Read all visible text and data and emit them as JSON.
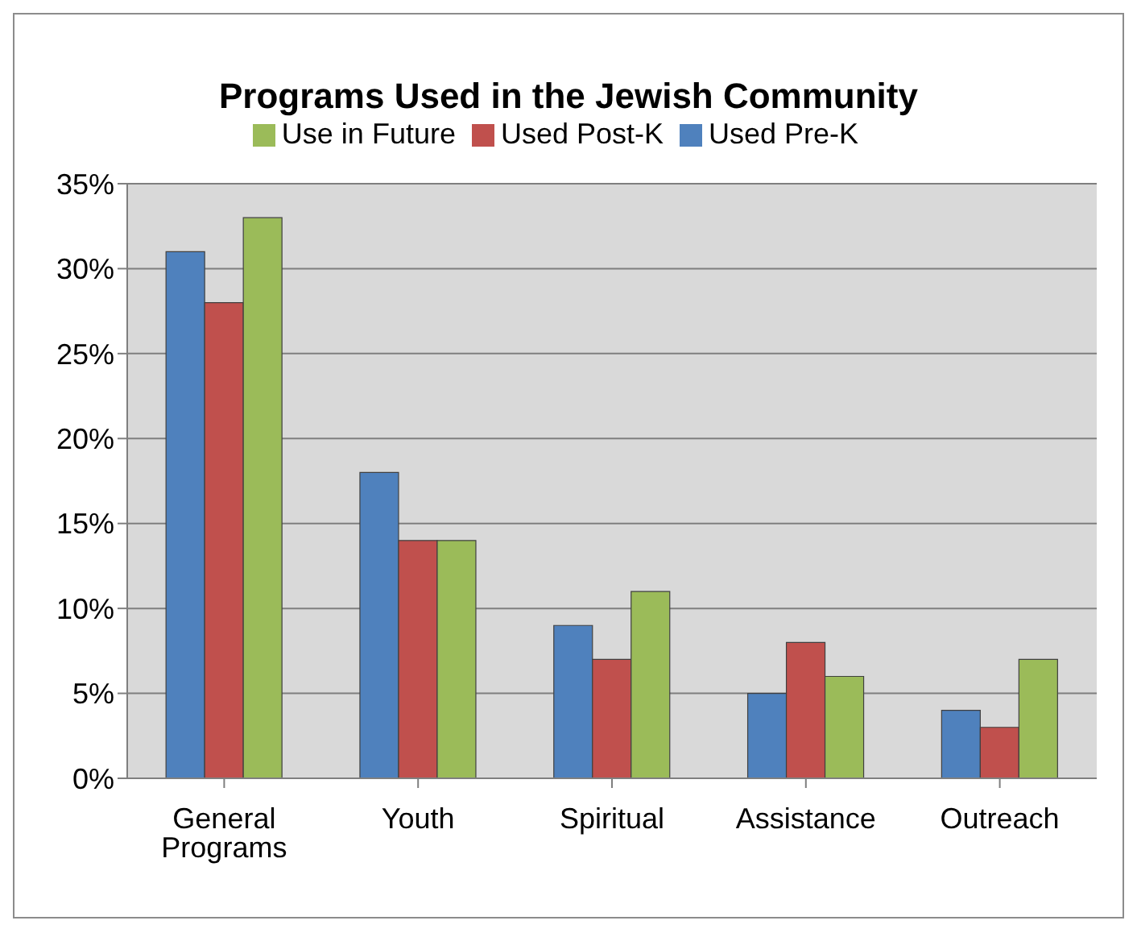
{
  "chart_data": {
    "type": "bar",
    "title": "Programs Used in the Jewish Community",
    "categories": [
      "General Programs",
      "Youth",
      "Spiritual",
      "Assistance",
      "Outreach"
    ],
    "series": [
      {
        "name": "Used Pre-K",
        "color": "#4f81bd",
        "values": [
          31,
          18,
          9,
          5,
          4
        ]
      },
      {
        "name": "Used Post-K",
        "color": "#c0504d",
        "values": [
          28,
          14,
          7,
          8,
          3
        ]
      },
      {
        "name": "Use in Future",
        "color": "#9bbb59",
        "values": [
          33,
          14,
          11,
          6,
          7
        ]
      }
    ],
    "ylim": [
      0,
      35
    ],
    "yticks": [
      {
        "value": 0,
        "label": "0%"
      },
      {
        "value": 5,
        "label": "5%"
      },
      {
        "value": 10,
        "label": "10%"
      },
      {
        "value": 15,
        "label": "15%"
      },
      {
        "value": 20,
        "label": "20%"
      },
      {
        "value": 25,
        "label": "25%"
      },
      {
        "value": 30,
        "label": "30%"
      },
      {
        "value": 35,
        "label": "35%"
      }
    ],
    "grid": "y",
    "legend": "top"
  }
}
